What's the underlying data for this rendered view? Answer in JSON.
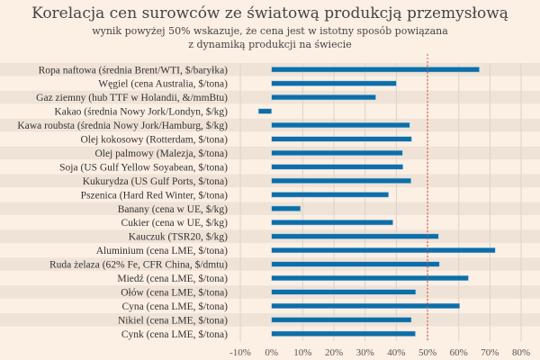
{
  "chart_data": {
    "type": "bar",
    "orientation": "horizontal",
    "title": "Korelacja cen surowców ze światową produkcją przemysłową",
    "subtitle": "wynik powyżej 50% wskazuje, że cena jest w istotny sposób powiązana z dynamiką produkcji na świecie",
    "categories": [
      "Ropa naftowa (średnia Brent/WTI, $/baryłka)",
      "Węgiel (cena Australia, $/tona)",
      "Gaz ziemny (hub TTF w Holandii, &/mmBtu)",
      "Kakao (średnia Nowy Jork/Londyn, $/kg)",
      "Kawa roubsta (średnia Nowy Jork/Hamburg, $/kg)",
      "Olej kokosowy (Rotterdam, $/tona)",
      "Olej palmowy (Malezja, $/tona)",
      "Soja (US Gulf Yellow Soyabean, $/tona)",
      "Kukurydza (US Gulf Ports, $/tona)",
      "Pszenica (Hard Red Winter, $/tona)",
      "Banany (cena w UE, $/kg)",
      "Cukier (cena w UE, $/kg)",
      "Kauczuk (TSR20, $/kg)",
      "Aluminium (cena LME, $/tona)",
      "Ruda żelaza (62% Fe, CFR China, $/dmtu)",
      "Miedź (cena LME, $/tona)",
      "Ołów (cena LME, $/tona)",
      "Cyna (cena LME, $/tona)",
      "Nikiel (cena LME, $/tona)",
      "Cynk (cena LME, $/tona)"
    ],
    "values": [
      66.6,
      40.0,
      33.4,
      -4.2,
      44.3,
      44.9,
      42.0,
      42.1,
      44.7,
      37.5,
      9.3,
      38.9,
      53.5,
      71.7,
      53.8,
      63.1,
      46.2,
      60.3,
      44.8,
      46.1
    ],
    "xlim": [
      -10,
      80
    ],
    "xticks": [
      "-10%",
      "0%",
      "10%",
      "20%",
      "30%",
      "40%",
      "50%",
      "60%",
      "70%",
      "80%"
    ],
    "tick_values": [
      -10,
      0,
      10,
      20,
      30,
      40,
      50,
      60,
      70,
      80
    ],
    "reference_line": 50,
    "grid": true,
    "colors": {
      "bar": "#0d6ea8",
      "reference": "#e0453a",
      "background": "#fcefe3",
      "band": "#efe3d7",
      "grid": "#dcd3cb"
    }
  }
}
